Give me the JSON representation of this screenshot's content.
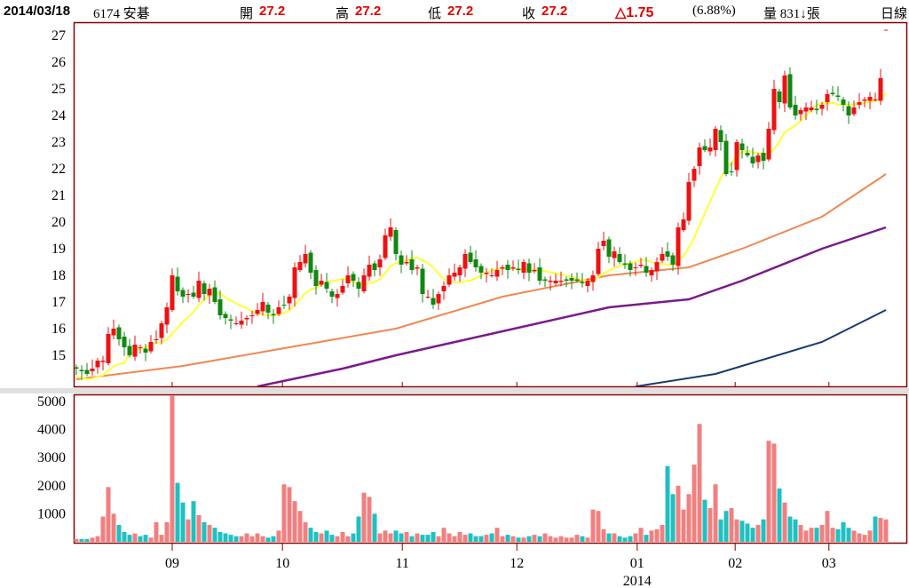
{
  "header": {
    "date": "2014/03/18",
    "stock": "6174 安碁",
    "open_label": "開",
    "open": "27.2",
    "high_label": "高",
    "high": "27.2",
    "low_label": "低",
    "low": "27.2",
    "close_label": "收",
    "close": "27.2",
    "change": "△1.75",
    "change_pct": "(6.88%)",
    "volume_text": "量 831↓張",
    "period": "日線"
  },
  "colors": {
    "up": "#ee1111",
    "down": "#118811",
    "ma_short": "#ffff33",
    "ma_mid": "#f08850",
    "ma_long": "#7a1a8a",
    "ma_year": "#1a3a6a",
    "vol_up": "#f08080",
    "vol_down": "#20c0c0",
    "frame": "#880000"
  },
  "chart_data": {
    "type": "candlestick",
    "price_axis": {
      "ticks": [
        27,
        26,
        25,
        24,
        23,
        22,
        21,
        20,
        19,
        18,
        17,
        16,
        15
      ],
      "ylim": [
        13.83,
        27.47
      ]
    },
    "volume_axis": {
      "ticks": [
        5000,
        4000,
        3000,
        2000,
        1000
      ],
      "ylim": [
        0,
        5300
      ]
    },
    "x_ticks": [
      {
        "index": 18,
        "label": "09"
      },
      {
        "index": 38.7,
        "label": "10"
      },
      {
        "index": 61.2,
        "label": "11"
      },
      {
        "index": 82.7,
        "label": "12"
      },
      {
        "index": 105.3,
        "label": "01"
      },
      {
        "index": 123.7,
        "label": "02"
      },
      {
        "index": 141.3,
        "label": "03"
      }
    ],
    "year_label": {
      "index": 105.3,
      "label": "2014"
    },
    "close": [
      14.5,
      14.4,
      14.3,
      14.5,
      14.8,
      14.8,
      15.8,
      16.0,
      15.6,
      15.3,
      15.0,
      15.4,
      15.3,
      15.1,
      15.5,
      15.6,
      16.2,
      16.8,
      18.0,
      17.4,
      17.2,
      17.3,
      17.2,
      17.8,
      17.3,
      17.5,
      17.0,
      16.5,
      16.4,
      16.3,
      16.2,
      16.3,
      16.4,
      16.5,
      16.7,
      17.0,
      16.6,
      16.5,
      16.8,
      16.9,
      17.2,
      18.3,
      18.5,
      18.8,
      18.1,
      17.6,
      17.8,
      17.5,
      17.2,
      17.3,
      17.6,
      18.0,
      17.8,
      17.5,
      18.0,
      18.4,
      18.2,
      18.6,
      19.5,
      19.8,
      18.8,
      18.4,
      18.5,
      18.2,
      18.3,
      17.3,
      17.2,
      16.9,
      17.3,
      17.6,
      18.0,
      18.1,
      18.3,
      18.8,
      18.5,
      18.3,
      18.1,
      18.1,
      18.0,
      18.2,
      18.3,
      18.2,
      18.3,
      18.2,
      18.5,
      18.1,
      18.2,
      17.8,
      17.8,
      17.8,
      17.8,
      17.8,
      17.8,
      17.8,
      17.8,
      17.7,
      17.8,
      18.0,
      19.0,
      19.3,
      18.7,
      18.9,
      18.5,
      18.4,
      18.2,
      18.3,
      18.4,
      18.1,
      18.2,
      18.5,
      18.8,
      18.7,
      18.4,
      19.8,
      20.1,
      21.5,
      22.0,
      22.8,
      22.7,
      22.8,
      23.5,
      23.0,
      21.8,
      21.9,
      23.0,
      22.7,
      22.5,
      22.2,
      22.5,
      22.3,
      23.5,
      25.0,
      24.5,
      25.5,
      24.3,
      24.0,
      24.2,
      24.3,
      24.3,
      24.2,
      24.4,
      24.8,
      24.8,
      24.7,
      24.4,
      24.0,
      24.3,
      24.5,
      24.6,
      24.7,
      24.6,
      25.4,
      27.2
    ],
    "volume": [
      100,
      100,
      100,
      150,
      200,
      900,
      1950,
      1000,
      600,
      350,
      250,
      300,
      200,
      250,
      150,
      700,
      250,
      700,
      5200,
      2100,
      1400,
      800,
      1450,
      950,
      700,
      600,
      500,
      350,
      300,
      250,
      200,
      200,
      300,
      200,
      300,
      200,
      150,
      200,
      400,
      2050,
      1950,
      1450,
      1100,
      700,
      500,
      350,
      300,
      400,
      250,
      200,
      350,
      200,
      300,
      900,
      1750,
      1600,
      1000,
      300,
      400,
      300,
      400,
      300,
      350,
      200,
      300,
      250,
      250,
      350,
      200,
      500,
      300,
      200,
      350,
      250,
      300,
      200,
      200,
      250,
      300,
      500,
      200,
      250,
      200,
      150,
      150,
      200,
      250,
      200,
      300,
      200,
      150,
      200,
      150,
      150,
      250,
      200,
      150,
      1150,
      1100,
      450,
      300,
      300,
      200,
      150,
      200,
      300,
      500,
      250,
      400,
      450,
      600,
      2700,
      1700,
      2000,
      1150,
      1700,
      2750,
      4200,
      1500,
      1200,
      2050,
      800,
      1100,
      1200,
      800,
      750,
      650,
      500,
      600,
      800,
      3600,
      3500,
      1900,
      1400,
      900,
      800,
      600,
      400,
      500,
      500,
      600,
      1100,
      500,
      450,
      700,
      500,
      400,
      300,
      250,
      400,
      900,
      850,
      800
    ],
    "ma_mid": [
      [
        0,
        14.1
      ],
      [
        20,
        14.6
      ],
      [
        40,
        15.3
      ],
      [
        60,
        16.0
      ],
      [
        80,
        17.2
      ],
      [
        100,
        18.0
      ],
      [
        115,
        18.3
      ],
      [
        125,
        19.0
      ],
      [
        140,
        20.2
      ],
      [
        152,
        21.8
      ]
    ],
    "ma_long": [
      [
        34,
        13.83
      ],
      [
        50,
        14.5
      ],
      [
        60,
        15.0
      ],
      [
        80,
        15.9
      ],
      [
        100,
        16.8
      ],
      [
        115,
        17.1
      ],
      [
        125,
        17.8
      ],
      [
        140,
        19.0
      ],
      [
        152,
        19.8
      ]
    ],
    "ma_year": [
      [
        105,
        13.83
      ],
      [
        120,
        14.3
      ],
      [
        140,
        15.5
      ],
      [
        152,
        16.7
      ]
    ]
  }
}
